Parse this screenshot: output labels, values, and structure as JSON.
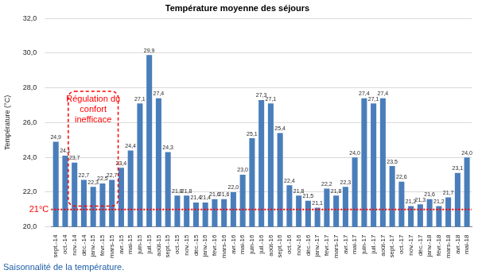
{
  "chart_data": {
    "type": "bar",
    "title": "Température moyenne des séjours",
    "y_label": "Température (°C)",
    "categories": [
      "sept.-14",
      "oct.-14",
      "nov.-14",
      "déc.-14",
      "janv.-15",
      "févr.-15",
      "mars-15",
      "avr.-15",
      "mai-15",
      "juin-15",
      "juil.-15",
      "août-15",
      "sept.-15",
      "oct.-15",
      "nov.-15",
      "déc.-15",
      "janv.-16",
      "févr.-16",
      "mars-16",
      "avr.-16",
      "mai-16",
      "juin-16",
      "juil.-16",
      "août-16",
      "sept.-16",
      "oct.-16",
      "nov.-16",
      "déc.-16",
      "janv.-17",
      "févr.-17",
      "mars-17",
      "avr.-17",
      "mai-17",
      "juin-17",
      "juil.-17",
      "août-17",
      "sept.-17",
      "oct.-17",
      "nov.-17",
      "déc.-17",
      "janv.-18",
      "févr.-18",
      "mars-18",
      "avr.-18",
      "mai-18"
    ],
    "values": [
      24.9,
      24.1,
      23.7,
      22.7,
      22.3,
      22.5,
      22.7,
      23.4,
      24.4,
      27.1,
      29.9,
      27.4,
      24.3,
      21.8,
      21.8,
      21.4,
      21.4,
      21.6,
      21.6,
      22.0,
      23.0,
      25.1,
      27.3,
      27.1,
      25.4,
      22.4,
      21.8,
      21.5,
      21.1,
      22.2,
      21.8,
      22.3,
      24.0,
      27.4,
      27.1,
      27.4,
      23.5,
      22.6,
      21.2,
      21.3,
      21.6,
      21.2,
      21.7,
      23.1,
      24.0
    ],
    "value_labels": [
      "24,9",
      "24,1",
      "23,7",
      "22,7",
      "22,3",
      "22,5",
      "22,7",
      "23,4",
      "24,4",
      "27,1",
      "29,9",
      "27,4",
      "24,3",
      "21,8",
      "21,8",
      "21,4",
      "21,4",
      "21,6",
      "21,6",
      "22,0",
      "23,0",
      "25,1",
      "27,3",
      "27,1",
      "25,4",
      "22,4",
      "21,8",
      "21,5",
      "21,1",
      "22,2",
      "21,8",
      "22,3",
      "24,0",
      "27,4",
      "27,1",
      "27,4",
      "23,5",
      "22,6",
      "21,2",
      "21,3",
      "21,6",
      "21,2",
      "21,7",
      "23,1",
      "24,0"
    ],
    "color": "#4a7ebb",
    "ylim": [
      20,
      32
    ],
    "yticks": [
      {
        "value": 20,
        "label": "20,0"
      },
      {
        "value": 22,
        "label": "22,0"
      },
      {
        "value": 24,
        "label": "24,0"
      },
      {
        "value": 26,
        "label": "26,0"
      },
      {
        "value": 28,
        "label": "28,0"
      },
      {
        "value": 30,
        "label": "30,0"
      },
      {
        "value": 32,
        "label": "32,0"
      }
    ],
    "grid": true,
    "data_labels": true,
    "reference_line": {
      "value": 21,
      "label": "21°C",
      "color": "#ff0000"
    },
    "annotations": [
      {
        "text": [
          "Régulation du",
          "confort",
          "inefficace"
        ],
        "from": "nov.-14",
        "to": "mars-15",
        "color": "#ff0000"
      }
    ],
    "caption": {
      "text": "Saisonnalité de la température.",
      "color": "#1f5fa8"
    }
  }
}
